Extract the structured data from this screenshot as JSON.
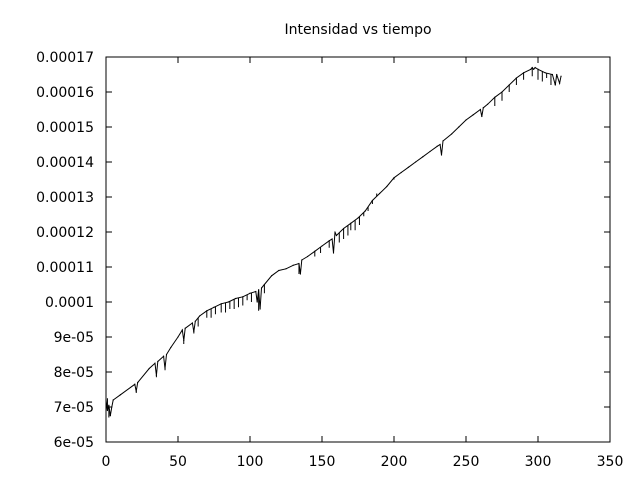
{
  "chart_data": {
    "type": "line",
    "title": "Intensidad vs tiempo",
    "xlabel": "",
    "ylabel": "",
    "xlim": [
      0,
      350
    ],
    "ylim": [
      6e-05,
      0.00017
    ],
    "grid": false,
    "x_ticks": [
      0,
      50,
      100,
      150,
      200,
      250,
      300,
      350
    ],
    "x_tick_labels": [
      "0",
      "50",
      "100",
      "150",
      "200",
      "250",
      "300",
      "350"
    ],
    "y_ticks": [
      6e-05,
      7e-05,
      8e-05,
      9e-05,
      0.0001,
      0.00011,
      0.00012,
      0.00013,
      0.00014,
      0.00015,
      0.00016,
      0.00017
    ],
    "y_tick_labels": [
      "6e-05",
      "7e-05",
      "8e-05",
      "9e-05",
      "0.0001",
      "0.00011",
      "0.00012",
      "0.00013",
      "0.00014",
      "0.00015",
      "0.00016",
      "0.00017"
    ],
    "series": [
      {
        "color": "#000000",
        "x": [
          0,
          1,
          2,
          3,
          4,
          5,
          10,
          20,
          21,
          22,
          30,
          34,
          35,
          36,
          40,
          41,
          42,
          45,
          50,
          53,
          54,
          55,
          60,
          61,
          62,
          65,
          70,
          75,
          80,
          85,
          90,
          95,
          100,
          104,
          105,
          106,
          107,
          108,
          110,
          115,
          120,
          125,
          130,
          134,
          135,
          136,
          140,
          145,
          150,
          155,
          157,
          158,
          159,
          160,
          165,
          170,
          175,
          180,
          185,
          190,
          195,
          200,
          205,
          210,
          215,
          220,
          225,
          230,
          232,
          233,
          234,
          240,
          245,
          250,
          255,
          260,
          261,
          262,
          265,
          270,
          275,
          280,
          285,
          290,
          295,
          296,
          297,
          298,
          300,
          305,
          310,
          312,
          313,
          315,
          316
        ],
        "y": [
          7.2e-05,
          6.9e-05,
          7.05e-05,
          6.75e-05,
          7e-05,
          7.2e-05,
          7.35e-05,
          7.65e-05,
          7.45e-05,
          7.7e-05,
          8.1e-05,
          8.25e-05,
          7.9e-05,
          8.3e-05,
          8.45e-05,
          8.1e-05,
          8.5e-05,
          8.7e-05,
          9e-05,
          9.2e-05,
          8.9e-05,
          9.25e-05,
          9.4e-05,
          9.15e-05,
          9.45e-05,
          9.6e-05,
          9.75e-05,
          9.85e-05,
          9.95e-05,
          0.0001,
          0.000101,
          0.0001015,
          0.0001025,
          0.000103,
          0.0001,
          0.0001035,
          9.8e-05,
          0.000104,
          0.000105,
          0.0001075,
          0.000109,
          0.0001095,
          0.0001105,
          0.000111,
          0.000108,
          0.000112,
          0.000113,
          0.0001145,
          0.000116,
          0.0001175,
          0.000118,
          0.000114,
          0.00012,
          0.000119,
          0.000121,
          0.0001225,
          0.000124,
          0.000126,
          0.000129,
          0.000131,
          0.000133,
          0.0001355,
          0.000137,
          0.0001385,
          0.00014,
          0.0001415,
          0.000143,
          0.0001445,
          0.000145,
          0.000142,
          0.000146,
          0.000148,
          0.00015,
          0.000152,
          0.0001535,
          0.000155,
          0.000153,
          0.0001555,
          0.0001565,
          0.0001585,
          0.00016,
          0.000162,
          0.000164,
          0.0001655,
          0.0001665,
          0.000167,
          0.0001665,
          0.000167,
          0.0001665,
          0.0001655,
          0.000165,
          0.000162,
          0.000165,
          0.0001625,
          0.0001645
        ]
      }
    ],
    "spikes": [
      [
        0,
        6.9e-05
      ],
      [
        1,
        7.25e-05
      ],
      [
        2,
        6.7e-05
      ],
      [
        3,
        6.8e-05
      ],
      [
        21,
        7.4e-05
      ],
      [
        35,
        7.85e-05
      ],
      [
        41,
        8.05e-05
      ],
      [
        54,
        8.8e-05
      ],
      [
        61,
        9.1e-05
      ],
      [
        64,
        9.3e-05
      ],
      [
        70,
        9.55e-05
      ],
      [
        73,
        9.55e-05
      ],
      [
        76,
        9.65e-05
      ],
      [
        80,
        9.7e-05
      ],
      [
        83,
        9.7e-05
      ],
      [
        86,
        9.8e-05
      ],
      [
        89,
        9.8e-05
      ],
      [
        92,
        9.85e-05
      ],
      [
        95,
        9.9e-05
      ],
      [
        98,
        0.0001005
      ],
      [
        101,
        0.0001
      ],
      [
        106,
        9.75e-05
      ],
      [
        110,
        0.0001025
      ],
      [
        134,
        0.000108
      ],
      [
        145,
        0.000113
      ],
      [
        149,
        0.000114
      ],
      [
        155,
        0.0001155
      ],
      [
        158,
        0.000114
      ],
      [
        162,
        0.000117
      ],
      [
        165,
        0.000118
      ],
      [
        168,
        0.000119
      ],
      [
        170,
        0.0001205
      ],
      [
        173,
        0.0001205
      ],
      [
        176,
        0.000122
      ],
      [
        179,
        0.0001245
      ],
      [
        182,
        0.000126
      ],
      [
        185,
        0.000128
      ],
      [
        188,
        0.000131
      ],
      [
        200,
        0.000135
      ],
      [
        233,
        0.000142
      ],
      [
        261,
        0.000153
      ],
      [
        270,
        0.000156
      ],
      [
        275,
        0.0001575
      ],
      [
        280,
        0.00016
      ],
      [
        285,
        0.000162
      ],
      [
        290,
        0.0001635
      ],
      [
        296,
        0.0001645
      ],
      [
        300,
        0.0001635
      ],
      [
        303,
        0.000163
      ],
      [
        306,
        0.000164
      ],
      [
        309,
        0.000162
      ],
      [
        312,
        0.0001625
      ],
      [
        315,
        0.0001625
      ]
    ]
  }
}
